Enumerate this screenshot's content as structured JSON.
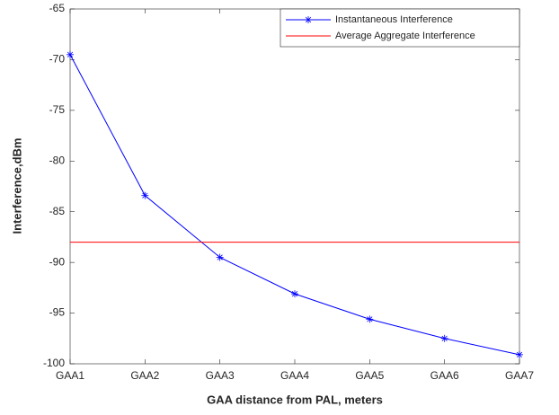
{
  "chart_data": {
    "type": "line",
    "x_label": "GAA distance from PAL, meters",
    "y_label": "Interference,dBm",
    "categories": [
      "GAA1",
      "GAA2",
      "GAA3",
      "GAA4",
      "GAA5",
      "GAA6",
      "GAA7"
    ],
    "series": [
      {
        "name": "Instantaneous Interference",
        "color": "#0000ff",
        "marker": "*",
        "values": [
          -69.5,
          -83.4,
          -89.5,
          -93.1,
          -95.6,
          -97.5,
          -99.1
        ]
      },
      {
        "name": "Average Aggregate Interference",
        "color": "#ff0000",
        "values": [
          -88,
          -88,
          -88,
          -88,
          -88,
          -88,
          -88
        ]
      }
    ],
    "ylim": [
      -100,
      -65
    ],
    "yticks": [
      -100,
      -95,
      -90,
      -85,
      -80,
      -75,
      -70,
      -65
    ],
    "grid": false,
    "legend": "upper right"
  }
}
